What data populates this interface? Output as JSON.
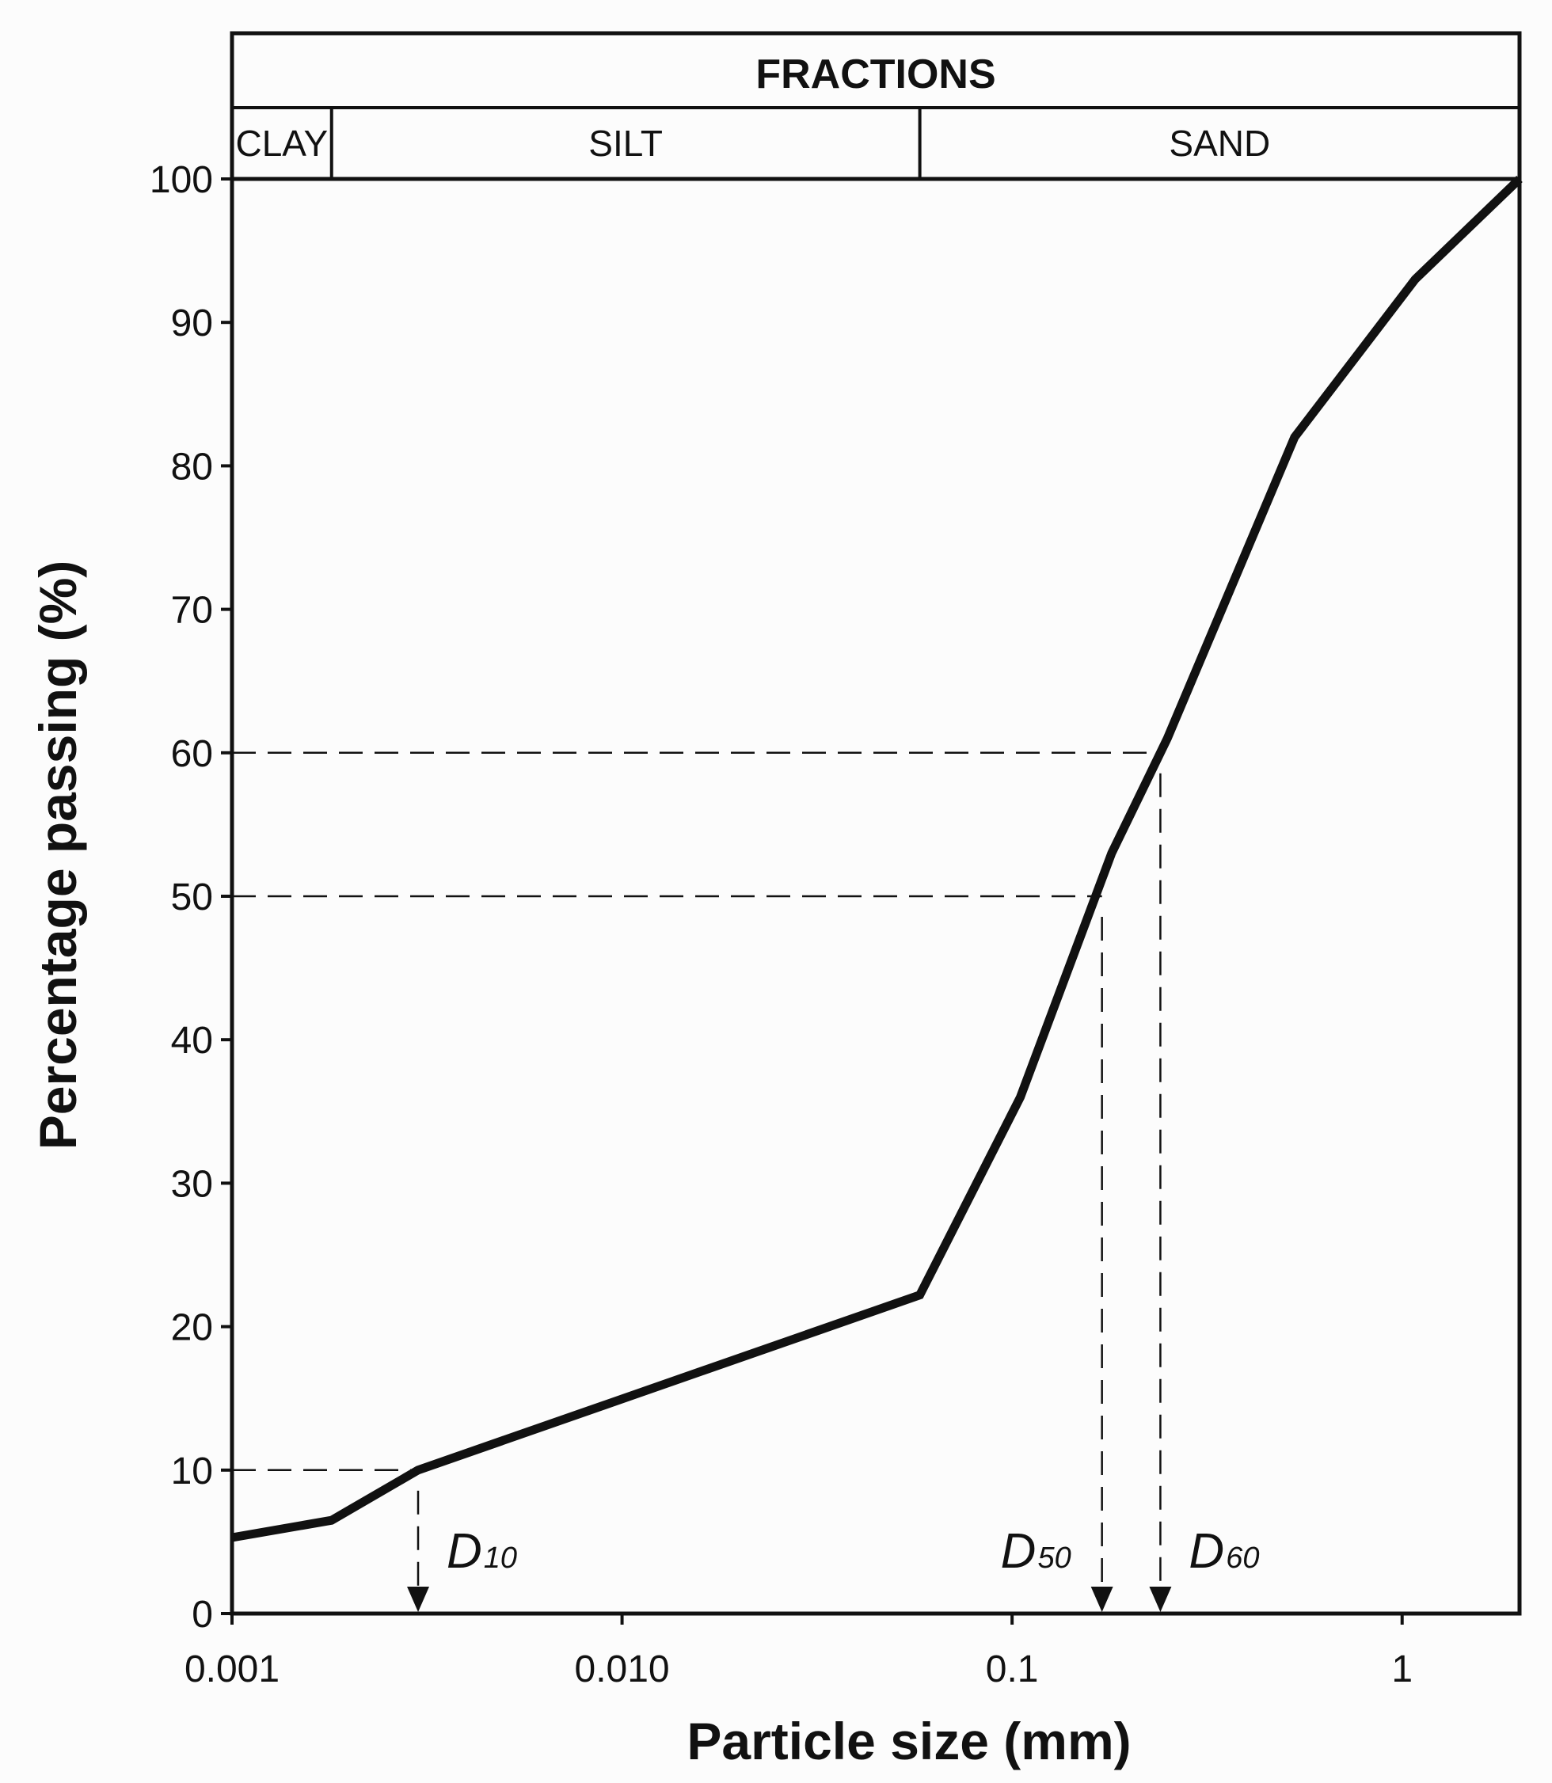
{
  "colors": {
    "background": "#fcfcfc",
    "line": "#111111"
  },
  "header": {
    "title": "FRACTIONS",
    "fractions": [
      {
        "label": "CLAY",
        "from": 0.001,
        "to": 0.0018
      },
      {
        "label": "SILT",
        "from": 0.0018,
        "to": 0.058
      },
      {
        "label": "SAND",
        "from": 0.058,
        "to": 2.0
      }
    ]
  },
  "chart_data": {
    "type": "line",
    "title": "",
    "xlabel": "Particle size (mm)",
    "ylabel": "Percentage passing (%)",
    "x_scale": "log",
    "xlim": [
      0.001,
      2.0
    ],
    "ylim": [
      0,
      100
    ],
    "x_ticks": [
      {
        "value": 0.001,
        "label": "0.001"
      },
      {
        "value": 0.01,
        "label": "0.010"
      },
      {
        "value": 0.1,
        "label": "0.1"
      },
      {
        "value": 1,
        "label": "1"
      }
    ],
    "y_ticks": [
      {
        "value": 0,
        "label": "0"
      },
      {
        "value": 10,
        "label": "10"
      },
      {
        "value": 20,
        "label": "20"
      },
      {
        "value": 30,
        "label": "30"
      },
      {
        "value": 40,
        "label": "40"
      },
      {
        "value": 50,
        "label": "50"
      },
      {
        "value": 60,
        "label": "60"
      },
      {
        "value": 70,
        "label": "70"
      },
      {
        "value": 80,
        "label": "80"
      },
      {
        "value": 90,
        "label": "90"
      },
      {
        "value": 100,
        "label": "100"
      }
    ],
    "grid": false,
    "legend": "none",
    "series": [
      {
        "x": [
          0.001,
          0.0018,
          0.003,
          0.058,
          0.105,
          0.18,
          0.25,
          0.53,
          1.08,
          2.0
        ],
        "y": [
          5.3,
          6.5,
          10,
          22.2,
          36,
          53,
          61,
          82,
          93,
          100
        ]
      }
    ],
    "annotations": [
      {
        "label": "D",
        "subscript": "10",
        "percent": 10,
        "size": 0.003
      },
      {
        "label": "D",
        "subscript": "50",
        "percent": 50,
        "size": 0.17
      },
      {
        "label": "D",
        "subscript": "60",
        "percent": 60,
        "size": 0.24
      }
    ]
  }
}
